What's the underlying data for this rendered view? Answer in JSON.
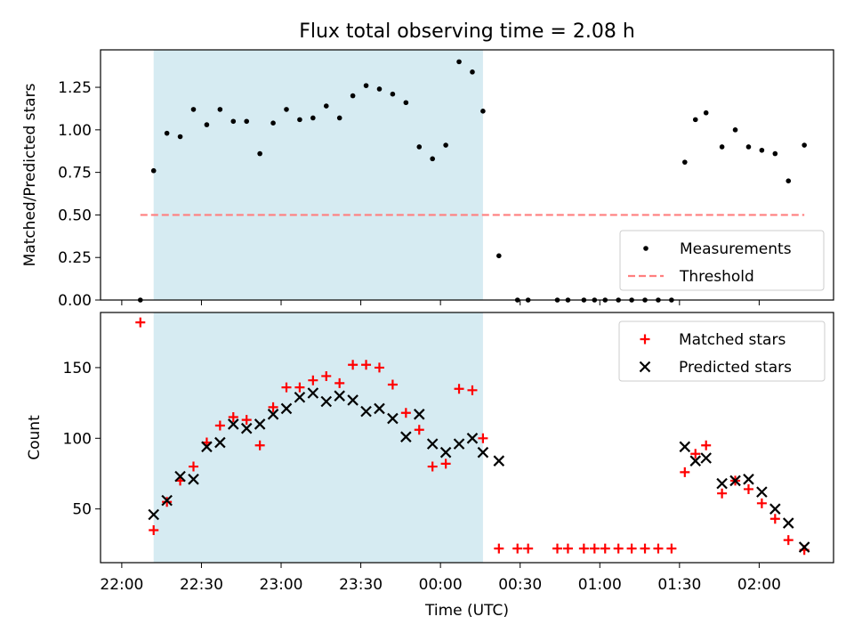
{
  "title": "Flux total observing time = 2.08 h",
  "colors": {
    "measurements": "#000000",
    "threshold": "#ff7f7f",
    "matched": "#ff0000",
    "predicted": "#000000",
    "observing_band": "#add8e6"
  },
  "chart_data": [
    {
      "type": "scatter",
      "panel": "top",
      "ylabel": "Matched/Predicted stars",
      "xlabel": "",
      "xlim": [
        "21:52",
        "02:28"
      ],
      "ylim": [
        0,
        1.47
      ],
      "yticks": [
        "0.00",
        "0.25",
        "0.50",
        "0.75",
        "1.00",
        "1.25"
      ],
      "ytick_values": [
        0,
        0.25,
        0.5,
        0.75,
        1.0,
        1.25
      ],
      "shaded_span": [
        "22:12",
        "00:16"
      ],
      "legend_position": "lower right",
      "series": [
        {
          "name": "Measurements",
          "marker": "dot",
          "x": [
            "22:07",
            "22:12",
            "22:17",
            "22:22",
            "22:27",
            "22:32",
            "22:37",
            "22:42",
            "22:47",
            "22:52",
            "22:57",
            "23:02",
            "23:07",
            "23:12",
            "23:17",
            "23:22",
            "23:27",
            "23:32",
            "23:37",
            "23:42",
            "23:47",
            "23:52",
            "23:57",
            "00:02",
            "00:07",
            "00:12",
            "00:16",
            "00:22",
            "00:29",
            "00:33",
            "00:44",
            "00:48",
            "00:54",
            "00:58",
            "01:02",
            "01:07",
            "01:12",
            "01:17",
            "01:22",
            "01:27",
            "01:32",
            "01:36",
            "01:40",
            "01:46",
            "01:51",
            "01:56",
            "02:01",
            "02:06",
            "02:11",
            "02:17"
          ],
          "y": [
            0.0,
            0.76,
            0.98,
            0.96,
            1.12,
            1.03,
            1.12,
            1.05,
            1.05,
            0.86,
            1.04,
            1.12,
            1.06,
            1.07,
            1.14,
            1.07,
            1.2,
            1.26,
            1.24,
            1.21,
            1.16,
            0.9,
            0.83,
            0.91,
            1.4,
            1.34,
            1.11,
            0.26,
            0.0,
            0.0,
            0.0,
            0.0,
            0.0,
            0.0,
            0.0,
            0.0,
            0.0,
            0.0,
            0.0,
            0.0,
            0.81,
            1.06,
            1.1,
            0.9,
            1.0,
            0.9,
            0.88,
            0.86,
            0.7,
            0.91
          ]
        },
        {
          "name": "Threshold",
          "marker": "dashed-line",
          "x": [
            "22:07",
            "02:17"
          ],
          "y": [
            0.5,
            0.5
          ]
        }
      ]
    },
    {
      "type": "scatter",
      "panel": "bottom",
      "ylabel": "Count",
      "xlabel": "Time (UTC)",
      "xlim": [
        "21:52",
        "02:28"
      ],
      "ylim": [
        12,
        189
      ],
      "yticks": [
        "50",
        "100",
        "150"
      ],
      "ytick_values": [
        50,
        100,
        150
      ],
      "xticks": [
        "22:00",
        "22:30",
        "23:00",
        "23:30",
        "00:00",
        "00:30",
        "01:00",
        "01:30",
        "02:00"
      ],
      "shaded_span": [
        "22:12",
        "00:16"
      ],
      "legend_position": "upper right",
      "series": [
        {
          "name": "Matched stars",
          "marker": "plus",
          "x": [
            "22:07",
            "22:12",
            "22:17",
            "22:22",
            "22:27",
            "22:32",
            "22:37",
            "22:42",
            "22:47",
            "22:52",
            "22:57",
            "23:02",
            "23:07",
            "23:12",
            "23:17",
            "23:22",
            "23:27",
            "23:32",
            "23:37",
            "23:42",
            "23:47",
            "23:52",
            "23:57",
            "00:02",
            "00:07",
            "00:12",
            "00:16",
            "00:22",
            "00:29",
            "00:33",
            "00:44",
            "00:48",
            "00:54",
            "00:58",
            "01:02",
            "01:07",
            "01:12",
            "01:17",
            "01:22",
            "01:27",
            "01:32",
            "01:36",
            "01:40",
            "01:46",
            "01:51",
            "01:56",
            "02:01",
            "02:06",
            "02:11",
            "02:17"
          ],
          "y": [
            182,
            35,
            55,
            70,
            80,
            97,
            109,
            115,
            113,
            95,
            122,
            136,
            136,
            141,
            144,
            139,
            152,
            152,
            150,
            138,
            118,
            106,
            80,
            82,
            135,
            134,
            100,
            22,
            22,
            22,
            22,
            22,
            22,
            22,
            22,
            22,
            22,
            22,
            22,
            22,
            76,
            89,
            95,
            61,
            70,
            64,
            54,
            43,
            28,
            21
          ]
        },
        {
          "name": "Predicted stars",
          "marker": "x",
          "x": [
            "22:12",
            "22:17",
            "22:22",
            "22:27",
            "22:32",
            "22:37",
            "22:42",
            "22:47",
            "22:52",
            "22:57",
            "23:02",
            "23:07",
            "23:12",
            "23:17",
            "23:22",
            "23:27",
            "23:32",
            "23:37",
            "23:42",
            "23:47",
            "23:52",
            "23:57",
            "00:02",
            "00:07",
            "00:12",
            "00:16",
            "00:22",
            "01:32",
            "01:36",
            "01:40",
            "01:46",
            "01:51",
            "01:56",
            "02:01",
            "02:06",
            "02:11",
            "02:17"
          ],
          "y": [
            46,
            56,
            73,
            71,
            94,
            97,
            110,
            107,
            110,
            117,
            121,
            129,
            132,
            126,
            130,
            127,
            119,
            121,
            114,
            101,
            117,
            96,
            90,
            96,
            100,
            90,
            84,
            94,
            84,
            86,
            68,
            70,
            71,
            62,
            50,
            40,
            23
          ]
        }
      ]
    }
  ]
}
